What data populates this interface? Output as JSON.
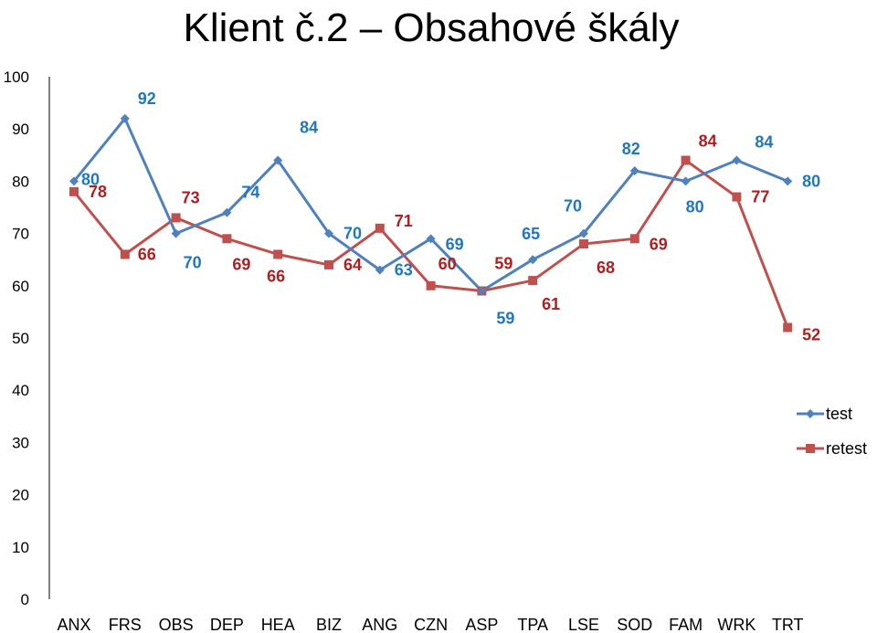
{
  "chart_data": {
    "type": "line",
    "title": "Klient č.2 – Obsahové škály",
    "xlabel": "",
    "ylabel": "",
    "ylim": [
      0,
      100
    ],
    "yticks": [
      0,
      10,
      20,
      30,
      40,
      50,
      60,
      70,
      80,
      90,
      100
    ],
    "grid": false,
    "legend_position": "right",
    "categories": [
      "ANX",
      "FRS",
      "OBS",
      "DEP",
      "HEA",
      "BIZ",
      "ANG",
      "CZN",
      "ASP",
      "TPA",
      "LSE",
      "SOD",
      "FAM",
      "WRK",
      "TRT"
    ],
    "series": [
      {
        "name": "test",
        "color": "#4F81BD",
        "label_color": "#1F77C0",
        "marker": "diamond",
        "values": [
          80,
          92,
          70,
          74,
          84,
          70,
          63,
          69,
          59,
          65,
          70,
          82,
          80,
          84,
          80
        ]
      },
      {
        "name": "retest",
        "color": "#C0504D",
        "label_color": "#B01F1F",
        "marker": "square",
        "values": [
          78,
          66,
          73,
          69,
          66,
          64,
          71,
          60,
          59,
          61,
          68,
          69,
          84,
          77,
          52
        ]
      }
    ]
  }
}
